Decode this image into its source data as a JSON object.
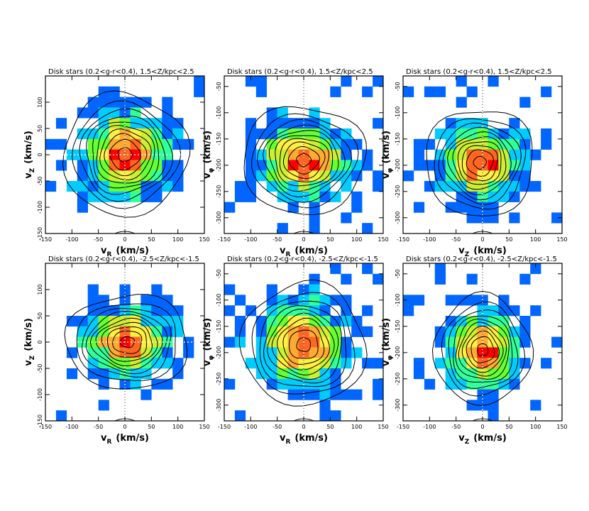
{
  "figure": {
    "description_free": true,
    "colormap": [
      "#0000ff",
      "#0066ff",
      "#00ccff",
      "#33ff99",
      "#66ff33",
      "#ccee33",
      "#ffee44",
      "#ffaa33",
      "#ff6622",
      "#ff0000"
    ]
  },
  "chart_data": [
    {
      "type": "heatmap",
      "title": "Disk stars (0.2<g-r<0.4), 1.5<Z/kpc<2.5",
      "xlabel_main": "v",
      "xlabel_sub": "R",
      "xlabel_unit": "(km/s)",
      "ylabel_main": "v",
      "ylabel_sub": "Z",
      "ylabel_unit": "(km/s)",
      "xlim": [
        -150,
        150
      ],
      "ylim": [
        -150,
        150
      ],
      "xticks": [
        -150,
        -100,
        -50,
        0,
        50,
        100,
        150
      ],
      "yticks": [
        -150,
        -100,
        -50,
        0,
        50,
        100
      ],
      "center": [
        0,
        0
      ],
      "spread": [
        45,
        45
      ],
      "contour_levels": [
        1.0,
        0.9,
        0.8,
        0.7,
        0.6,
        0.5,
        0.4,
        0.3,
        0.2,
        0.1
      ],
      "grid": false
    },
    {
      "type": "heatmap",
      "title": "Disk stars (0.2<g-r<0.4), 1.5<Z/kpc<2.5",
      "xlabel_main": "v",
      "xlabel_sub": "R",
      "xlabel_unit": "(km/s)",
      "ylabel_main": "v",
      "ylabel_sub": "φ",
      "ylabel_unit": "(km/s)",
      "xlim": [
        -150,
        150
      ],
      "ylim": [
        -330,
        -30
      ],
      "xticks": [
        -150,
        -100,
        -50,
        0,
        50,
        100,
        150
      ],
      "yticks": [
        -300,
        -250,
        -200,
        -150,
        -100,
        -50
      ],
      "center": [
        0,
        -190
      ],
      "spread": [
        45,
        40
      ],
      "contour_levels": [
        1.0,
        0.9,
        0.8,
        0.7,
        0.6,
        0.5,
        0.4,
        0.3,
        0.2,
        0.1
      ],
      "grid": false
    },
    {
      "type": "heatmap",
      "title": "Disk stars (0.2<g-r<0.4), 1.5<Z/kpc<2.5",
      "xlabel_main": "v",
      "xlabel_sub": "Z",
      "xlabel_unit": "(km/s)",
      "ylabel_main": "v",
      "ylabel_sub": "φ",
      "ylabel_unit": "(km/s)",
      "xlim": [
        -150,
        150
      ],
      "ylim": [
        -330,
        -30
      ],
      "xticks": [
        -150,
        -100,
        -50,
        0,
        50,
        100,
        150
      ],
      "yticks": [
        -300,
        -250,
        -200,
        -150,
        -100,
        -50
      ],
      "center": [
        -5,
        -195
      ],
      "spread": [
        40,
        40
      ],
      "contour_levels": [
        1.0,
        0.9,
        0.8,
        0.7,
        0.6,
        0.5,
        0.4,
        0.3,
        0.2,
        0.1
      ],
      "grid": false
    },
    {
      "type": "heatmap",
      "title": "Disk stars (0.2<g-r<0.4), -2.5<Z/kpc<-1.5",
      "xlabel_main": "v",
      "xlabel_sub": "R",
      "xlabel_unit": "(km/s)",
      "ylabel_main": "v",
      "ylabel_sub": "Z",
      "ylabel_unit": "(km/s)",
      "xlim": [
        -150,
        150
      ],
      "ylim": [
        -150,
        150
      ],
      "xticks": [
        -150,
        -100,
        -50,
        0,
        50,
        100,
        150
      ],
      "yticks": [
        -150,
        -100,
        -50,
        0,
        50,
        100
      ],
      "center": [
        5,
        0
      ],
      "spread": [
        45,
        35
      ],
      "contour_levels": [
        1.0,
        0.9,
        0.8,
        0.7,
        0.6,
        0.5,
        0.4,
        0.3,
        0.2,
        0.1
      ],
      "grid": false
    },
    {
      "type": "heatmap",
      "title": "Disk stars (0.2<g-r<0.4), -2.5<Z/kpc<-1.5",
      "xlabel_main": "v",
      "xlabel_sub": "R",
      "xlabel_unit": "(km/s)",
      "ylabel_main": "v",
      "ylabel_sub": "φ",
      "ylabel_unit": "(km/s)",
      "xlim": [
        -150,
        150
      ],
      "ylim": [
        -330,
        -30
      ],
      "xticks": [
        -150,
        -100,
        -50,
        0,
        50,
        100,
        150
      ],
      "yticks": [
        -300,
        -250,
        -200,
        -150,
        -100,
        -50
      ],
      "center": [
        0,
        -185
      ],
      "spread": [
        45,
        45
      ],
      "contour_levels": [
        1.0,
        0.9,
        0.8,
        0.7,
        0.6,
        0.5,
        0.4,
        0.3,
        0.2,
        0.1
      ],
      "grid": false
    },
    {
      "type": "heatmap",
      "title": "Disk stars (0.2<g-r<0.4), -2.5<Z/kpc<-1.5",
      "xlabel_main": "v",
      "xlabel_sub": "Z",
      "xlabel_unit": "(km/s)",
      "ylabel_main": "v",
      "ylabel_sub": "φ",
      "ylabel_unit": "(km/s)",
      "xlim": [
        -150,
        150
      ],
      "ylim": [
        -330,
        -30
      ],
      "xticks": [
        -150,
        -100,
        -50,
        0,
        50,
        100,
        150
      ],
      "yticks": [
        -300,
        -250,
        -200,
        -150,
        -100,
        -50
      ],
      "center": [
        0,
        -195
      ],
      "spread": [
        35,
        40
      ],
      "contour_levels": [
        1.0,
        0.9,
        0.8,
        0.7,
        0.6,
        0.5,
        0.4,
        0.3,
        0.2,
        0.1
      ],
      "grid": false
    }
  ]
}
